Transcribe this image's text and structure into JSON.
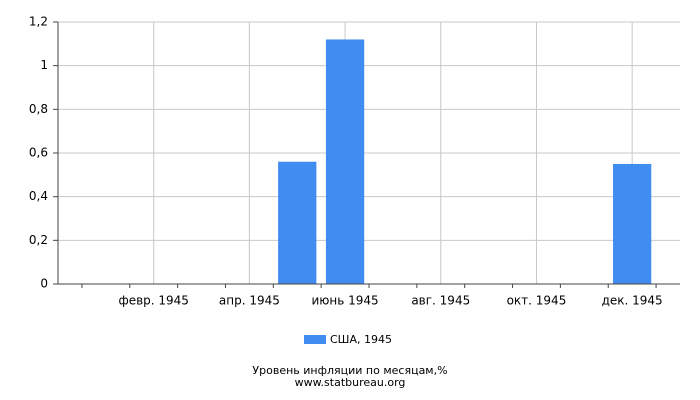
{
  "chart_data": {
    "type": "bar",
    "title": "Уровень инфляции по месяцам,%",
    "source": "www.statbureau.org",
    "categories": [
      null,
      "февр. 1945",
      null,
      "апр. 1945",
      null,
      "июнь 1945",
      null,
      "авг. 1945",
      null,
      "окт. 1945",
      null,
      "дек. 1945"
    ],
    "series": [
      {
        "name": "США, 1945",
        "color": "#418cf0",
        "values": [
          0,
          0,
          0,
          0,
          0.56,
          1.12,
          0,
          0,
          0,
          0,
          0,
          0.55
        ]
      }
    ],
    "ylim": [
      0,
      1.2
    ],
    "yticks": [
      0,
      {
        "value": 0.2,
        "label": "0,2"
      },
      {
        "value": 0.4,
        "label": "0,4"
      },
      {
        "value": 0.6,
        "label": "0,6"
      },
      {
        "value": 0.8,
        "label": "0,8"
      },
      1,
      {
        "value": 1.2,
        "label": "1,2"
      }
    ],
    "grid": true
  }
}
